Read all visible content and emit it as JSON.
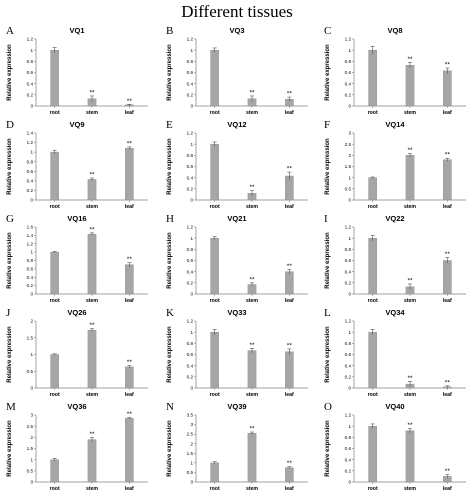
{
  "title": "Different tissues",
  "colors": {
    "bar": "#a6a6a6",
    "bar_edge": "#8c8c8c",
    "axis": "#808080",
    "text": "#000000"
  },
  "chart_data": [
    {
      "type": "bar",
      "letter": "A",
      "title": "VQ1",
      "categories": [
        "root",
        "stem",
        "leaf"
      ],
      "values": [
        1.0,
        0.13,
        0.02
      ],
      "errors": [
        0.05,
        0.05,
        0.01
      ],
      "significance": [
        "",
        "**",
        "**"
      ],
      "ylabel": "Relative expression",
      "ylim": [
        0,
        1.2
      ],
      "yticks": [
        "0",
        "0.2",
        "0.4",
        "0.6",
        "0.8",
        "1",
        "1.2"
      ]
    },
    {
      "type": "bar",
      "letter": "B",
      "title": "VQ3",
      "categories": [
        "root",
        "stem",
        "leaf"
      ],
      "values": [
        1.0,
        0.13,
        0.12
      ],
      "errors": [
        0.04,
        0.05,
        0.04
      ],
      "significance": [
        "",
        "**",
        "**"
      ],
      "ylabel": "Relative expression",
      "ylim": [
        0,
        1.2
      ],
      "yticks": [
        "0",
        "0.2",
        "0.4",
        "0.6",
        "0.8",
        "1",
        "1.2"
      ]
    },
    {
      "type": "bar",
      "letter": "C",
      "title": "VQ8",
      "categories": [
        "root",
        "stem",
        "leaf"
      ],
      "values": [
        1.0,
        0.73,
        0.63
      ],
      "errors": [
        0.07,
        0.05,
        0.05
      ],
      "significance": [
        "",
        "**",
        "**"
      ],
      "ylabel": "Relative expression",
      "ylim": [
        0,
        1.2
      ],
      "yticks": [
        "0",
        "0.2",
        "0.4",
        "0.6",
        "0.8",
        "1",
        "1.2"
      ]
    },
    {
      "type": "bar",
      "letter": "D",
      "title": "VQ9",
      "categories": [
        "root",
        "stem",
        "leaf"
      ],
      "values": [
        1.0,
        0.43,
        1.08
      ],
      "errors": [
        0.04,
        0.03,
        0.03
      ],
      "significance": [
        "",
        "**",
        "**"
      ],
      "ylabel": "Relative expression",
      "ylim": [
        0,
        1.4
      ],
      "yticks": [
        "0",
        "0.2",
        "0.4",
        "0.6",
        "0.8",
        "1",
        "1.2",
        "1.4"
      ]
    },
    {
      "type": "bar",
      "letter": "E",
      "title": "VQ12",
      "categories": [
        "root",
        "stem",
        "leaf"
      ],
      "values": [
        1.0,
        0.12,
        0.43
      ],
      "errors": [
        0.04,
        0.05,
        0.07
      ],
      "significance": [
        "",
        "**",
        "**"
      ],
      "ylabel": "Relative expression",
      "ylim": [
        0,
        1.2
      ],
      "yticks": [
        "0",
        "0.2",
        "0.4",
        "0.6",
        "0.8",
        "1",
        "1.2"
      ]
    },
    {
      "type": "bar",
      "letter": "F",
      "title": "VQ14",
      "categories": [
        "root",
        "stem",
        "leaf"
      ],
      "values": [
        1.0,
        2.0,
        1.8
      ],
      "errors": [
        0.03,
        0.08,
        0.07
      ],
      "significance": [
        "",
        "**",
        "**"
      ],
      "ylabel": "Relative expression",
      "ylim": [
        0,
        3
      ],
      "yticks": [
        "0",
        "0.5",
        "1",
        "1.5",
        "2",
        "2.5",
        "3"
      ]
    },
    {
      "type": "bar",
      "letter": "G",
      "title": "VQ16",
      "categories": [
        "root",
        "stem",
        "leaf"
      ],
      "values": [
        1.0,
        1.43,
        0.7
      ],
      "errors": [
        0.02,
        0.03,
        0.05
      ],
      "significance": [
        "",
        "**",
        "**"
      ],
      "ylabel": "Relative expression",
      "ylim": [
        0,
        1.6
      ],
      "yticks": [
        "0",
        "0.2",
        "0.4",
        "0.6",
        "0.8",
        "1",
        "1.2",
        "1.4",
        "1.6"
      ]
    },
    {
      "type": "bar",
      "letter": "H",
      "title": "VQ21",
      "categories": [
        "root",
        "stem",
        "leaf"
      ],
      "values": [
        1.0,
        0.17,
        0.4
      ],
      "errors": [
        0.03,
        0.03,
        0.04
      ],
      "significance": [
        "",
        "**",
        "**"
      ],
      "ylabel": "Relative expression",
      "ylim": [
        0,
        1.2
      ],
      "yticks": [
        "0",
        "0.2",
        "0.4",
        "0.6",
        "0.8",
        "1",
        "1.2"
      ]
    },
    {
      "type": "bar",
      "letter": "I",
      "title": "VQ22",
      "categories": [
        "root",
        "stem",
        "leaf"
      ],
      "values": [
        1.0,
        0.13,
        0.6
      ],
      "errors": [
        0.05,
        0.05,
        0.05
      ],
      "significance": [
        "",
        "**",
        "**"
      ],
      "ylabel": "Relative expression",
      "ylim": [
        0,
        1.2
      ],
      "yticks": [
        "0",
        "0.2",
        "0.4",
        "0.6",
        "0.8",
        "1",
        "1.2"
      ]
    },
    {
      "type": "bar",
      "letter": "J",
      "title": "VQ26",
      "categories": [
        "root",
        "stem",
        "leaf"
      ],
      "values": [
        1.0,
        1.73,
        0.63
      ],
      "errors": [
        0.02,
        0.04,
        0.04
      ],
      "significance": [
        "",
        "**",
        "**"
      ],
      "ylabel": "Relative expression",
      "ylim": [
        0,
        2
      ],
      "yticks": [
        "0",
        "0.5",
        "1",
        "1.5",
        "2"
      ]
    },
    {
      "type": "bar",
      "letter": "K",
      "title": "VQ33",
      "categories": [
        "root",
        "stem",
        "leaf"
      ],
      "values": [
        1.0,
        0.67,
        0.65
      ],
      "errors": [
        0.05,
        0.04,
        0.05
      ],
      "significance": [
        "",
        "**",
        "**"
      ],
      "ylabel": "Relative expression",
      "ylim": [
        0,
        1.2
      ],
      "yticks": [
        "0",
        "0.2",
        "0.4",
        "0.6",
        "0.8",
        "1",
        "1.2"
      ]
    },
    {
      "type": "bar",
      "letter": "L",
      "title": "VQ34",
      "categories": [
        "root",
        "stem",
        "leaf"
      ],
      "values": [
        1.0,
        0.07,
        0.02
      ],
      "errors": [
        0.05,
        0.05,
        0.02
      ],
      "significance": [
        "",
        "**",
        "**"
      ],
      "ylabel": "Relative expression",
      "ylim": [
        0,
        1.2
      ],
      "yticks": [
        "0",
        "0.2",
        "0.4",
        "0.6",
        "0.8",
        "1",
        "1.2"
      ]
    },
    {
      "type": "bar",
      "letter": "M",
      "title": "VQ36",
      "categories": [
        "root",
        "stem",
        "leaf"
      ],
      "values": [
        1.0,
        1.9,
        2.85
      ],
      "errors": [
        0.06,
        0.1,
        0.04
      ],
      "significance": [
        "",
        "**",
        "**"
      ],
      "ylabel": "Relative expression",
      "ylim": [
        0,
        3
      ],
      "yticks": [
        "0",
        "0.5",
        "1",
        "1.5",
        "2",
        "2.5",
        "3"
      ]
    },
    {
      "type": "bar",
      "letter": "N",
      "title": "VQ39",
      "categories": [
        "root",
        "stem",
        "leaf"
      ],
      "values": [
        1.0,
        2.55,
        0.75
      ],
      "errors": [
        0.06,
        0.06,
        0.05
      ],
      "significance": [
        "",
        "**",
        "**"
      ],
      "ylabel": "Relative expression",
      "ylim": [
        0,
        3.5
      ],
      "yticks": [
        "0",
        "0.5",
        "1",
        "1.5",
        "2",
        "2.5",
        "3",
        "3.5"
      ]
    },
    {
      "type": "bar",
      "letter": "O",
      "title": "VQ40",
      "categories": [
        "root",
        "stem",
        "leaf"
      ],
      "values": [
        1.0,
        0.92,
        0.1
      ],
      "errors": [
        0.04,
        0.04,
        0.03
      ],
      "significance": [
        "",
        "**",
        "**"
      ],
      "ylabel": "Relative expression",
      "ylim": [
        0,
        1.2
      ],
      "yticks": [
        "0",
        "0.2",
        "0.4",
        "0.6",
        "0.8",
        "1",
        "1.2"
      ]
    }
  ]
}
